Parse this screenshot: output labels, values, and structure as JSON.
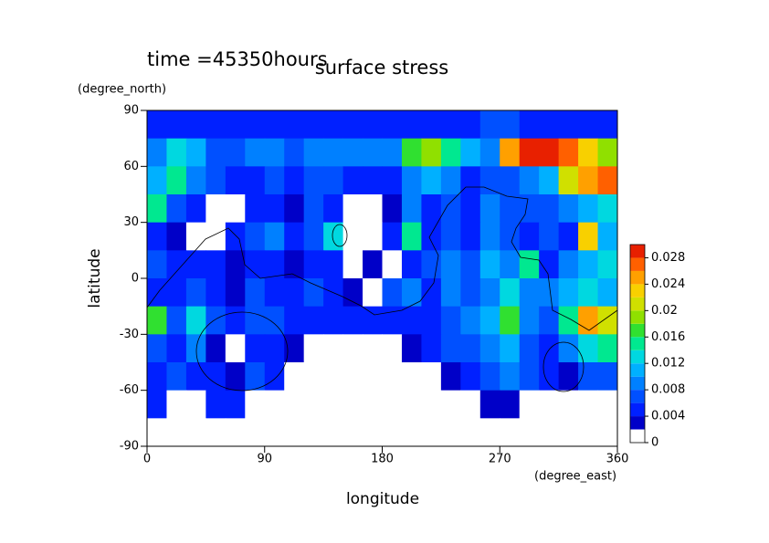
{
  "chart_data": {
    "type": "contour",
    "title": "surface stress",
    "subtitle": "time =45350hours",
    "x_label": "longitude",
    "x_unit": "(degree_east)",
    "y_label": "latitude",
    "y_unit": "(degree_north)",
    "xlim": [
      0,
      360
    ],
    "ylim": [
      -90,
      90
    ],
    "xticks": [
      0,
      90,
      180,
      270,
      360
    ],
    "yticks": [
      90,
      60,
      30,
      0,
      -30,
      -60,
      -90
    ],
    "x": [
      7.5,
      22.5,
      37.5,
      52.5,
      67.5,
      82.5,
      97.5,
      112.5,
      127.5,
      142.5,
      157.5,
      172.5,
      187.5,
      202.5,
      217.5,
      232.5,
      247.5,
      262.5,
      277.5,
      292.5,
      307.5,
      322.5,
      337.5,
      352.5
    ],
    "y": [
      82.5,
      67.5,
      52.5,
      37.5,
      22.5,
      7.5,
      -7.5,
      -22.5,
      -37.5,
      -52.5,
      -67.5,
      -82.5
    ],
    "z": [
      [
        0.004,
        0.005,
        0.004,
        0.004,
        0.004,
        0.004,
        0.005,
        0.005,
        0.004,
        0.004,
        0.004,
        0.004,
        0.005,
        0.005,
        0.004,
        0.005,
        0.005,
        0.006,
        0.006,
        0.005,
        0.005,
        0.005,
        0.005,
        0.005
      ],
      [
        0.008,
        0.012,
        0.01,
        0.006,
        0.007,
        0.008,
        0.008,
        0.007,
        0.009,
        0.008,
        0.008,
        0.009,
        0.008,
        0.016,
        0.018,
        0.014,
        0.01,
        0.009,
        0.024,
        0.028,
        0.028,
        0.026,
        0.022,
        0.018
      ],
      [
        0.01,
        0.014,
        0.008,
        0.006,
        0.005,
        0.004,
        0.006,
        0.005,
        0.007,
        0.006,
        0.004,
        0.005,
        0.004,
        0.008,
        0.01,
        0.009,
        0.005,
        0.006,
        0.006,
        0.008,
        0.01,
        0.02,
        0.024,
        0.026
      ],
      [
        0.014,
        0.006,
        0.004,
        0,
        0,
        0.004,
        0.005,
        0.003,
        0.006,
        0.004,
        0,
        0,
        0.003,
        0.008,
        0.004,
        0.006,
        0.004,
        0.008,
        0.006,
        0.006,
        0.007,
        0.008,
        0.01,
        0.012
      ],
      [
        0.005,
        0.003,
        0,
        0,
        0.004,
        0.006,
        0.008,
        0.005,
        0.006,
        0.012,
        0,
        0,
        0.004,
        0.014,
        0.005,
        0.006,
        0.005,
        0.008,
        0.006,
        0.004,
        0.006,
        0.005,
        0.022,
        0.01
      ],
      [
        0.006,
        0.005,
        0.004,
        0.005,
        0.003,
        0.004,
        0.005,
        0.003,
        0.005,
        0.004,
        0,
        0.003,
        0,
        0.005,
        0.007,
        0.008,
        0.006,
        0.01,
        0.008,
        0.014,
        0.005,
        0.008,
        0.01,
        0.012
      ],
      [
        0.005,
        0.004,
        0.006,
        0.004,
        0.003,
        0.006,
        0.005,
        0.004,
        0.006,
        0.004,
        0.003,
        0,
        0.006,
        0.008,
        0.005,
        0.008,
        0.006,
        0.009,
        0.012,
        0.008,
        0.008,
        0.01,
        0.012,
        0.01
      ],
      [
        0.016,
        0.006,
        0.012,
        0.006,
        0.005,
        0.007,
        0.006,
        0.004,
        0.004,
        0.005,
        0.005,
        0.004,
        0.004,
        0.005,
        0.005,
        0.006,
        0.008,
        0.01,
        0.016,
        0.008,
        0.006,
        0.014,
        0.024,
        0.02
      ],
      [
        0.006,
        0.005,
        0.008,
        0.003,
        0,
        0.005,
        0.004,
        0.003,
        0,
        0,
        0,
        0,
        0,
        0.003,
        0.004,
        0.006,
        0.006,
        0.008,
        0.01,
        0.006,
        0.004,
        0.008,
        0.012,
        0.014
      ],
      [
        0.005,
        0.006,
        0.005,
        0.004,
        0.003,
        0.006,
        0.004,
        0,
        0,
        0,
        0,
        0,
        0,
        0,
        0,
        0.003,
        0.005,
        0.006,
        0.008,
        0.006,
        0.004,
        0.003,
        0.006,
        0.006
      ],
      [
        0.004,
        0,
        0,
        0.004,
        0.004,
        0,
        0,
        0,
        0,
        0,
        0,
        0,
        0,
        0,
        0,
        0,
        0,
        0.003,
        0.003,
        0,
        0,
        0,
        0,
        0
      ],
      [
        0,
        0,
        0,
        0,
        0,
        0,
        0,
        0,
        0,
        0,
        0,
        0,
        0,
        0,
        0,
        0,
        0,
        0,
        0,
        0,
        0,
        0,
        0,
        0
      ]
    ],
    "colorbar": {
      "lim": [
        0,
        0.03
      ],
      "levels": [
        0,
        0.002,
        0.004,
        0.006,
        0.008,
        0.01,
        0.012,
        0.014,
        0.016,
        0.018,
        0.02,
        0.022,
        0.024,
        0.026,
        0.028,
        0.03
      ],
      "colors": [
        "#ffffff",
        "#0000c8",
        "#0020ff",
        "#0050ff",
        "#0080ff",
        "#00b0ff",
        "#00d8e0",
        "#00e890",
        "#30e030",
        "#90e000",
        "#d0e000",
        "#f8d000",
        "#ffa000",
        "#ff6000",
        "#e82000"
      ],
      "ticks": [
        0,
        0.004,
        0.008,
        0.012,
        0.016,
        0.02,
        0.024,
        0.028
      ]
    }
  }
}
